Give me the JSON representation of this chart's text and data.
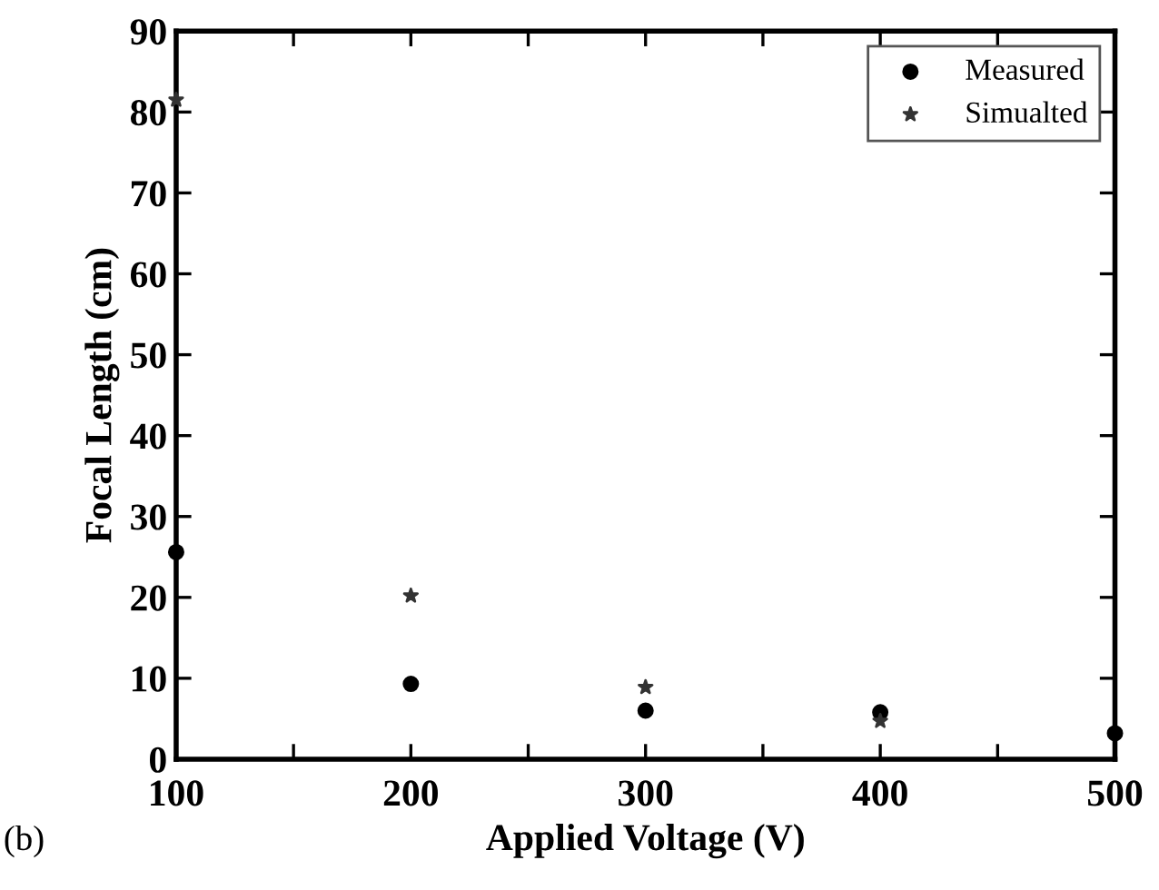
{
  "chart_data": {
    "type": "scatter",
    "xlabel": "Applied Voltage (V)",
    "ylabel": "Focal Length (cm)",
    "annotations": [
      "(b)"
    ],
    "series": [
      {
        "name": "Measured",
        "color": "#000000",
        "marker": "circle",
        "x": [
          100,
          200,
          300,
          400,
          500
        ],
        "values": [
          25.6,
          9.3,
          6.0,
          5.8,
          3.2
        ]
      },
      {
        "name": "Simualted",
        "color": "#333333",
        "marker": "star",
        "x": [
          100,
          200,
          300,
          400
        ],
        "values": [
          81.5,
          20.2,
          8.9,
          4.7
        ]
      }
    ],
    "xlim": [
      100,
      500
    ],
    "ylim": [
      0,
      90
    ],
    "xticks": [
      100,
      {
        "value": 150,
        "label": null
      },
      200,
      {
        "value": 250,
        "label": null
      },
      300,
      {
        "value": 350,
        "label": null
      },
      400,
      {
        "value": 450,
        "label": null
      },
      500
    ],
    "yticks": [
      0,
      10,
      20,
      30,
      40,
      50,
      60,
      70,
      80,
      90
    ],
    "grid": false,
    "legend": "top right"
  }
}
